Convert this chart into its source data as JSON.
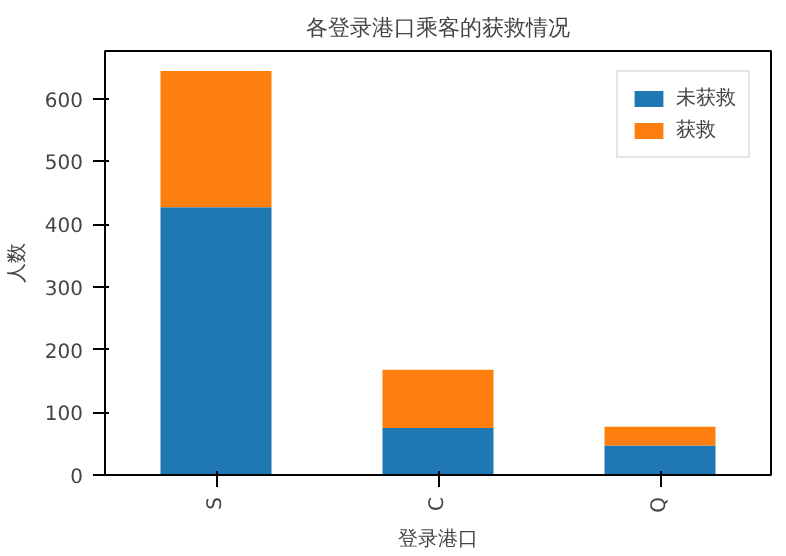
{
  "chart_data": {
    "type": "bar",
    "title": "各登录港口乘客的获救情况",
    "xlabel": "登录港口",
    "ylabel": "人数",
    "categories": [
      "S",
      "C",
      "Q"
    ],
    "series": [
      {
        "name": "未获救",
        "color": "#1f77b4",
        "values": [
          427,
          75,
          47
        ]
      },
      {
        "name": "获救",
        "color": "#ff7f0e",
        "values": [
          217,
          93,
          30
        ]
      }
    ],
    "stacked": true,
    "ylim": [
      0,
      676
    ],
    "yticks": [
      0,
      100,
      200,
      300,
      400,
      500,
      600
    ],
    "grid": false,
    "legend": "top right"
  }
}
